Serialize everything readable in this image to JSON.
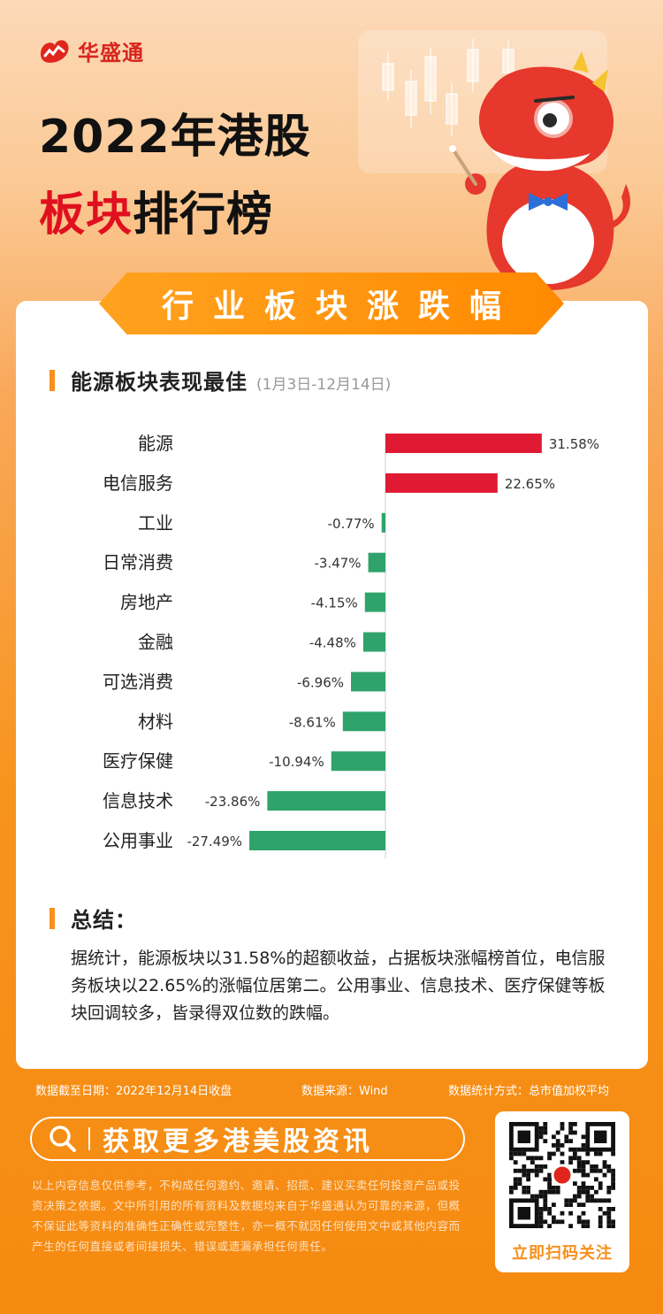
{
  "brand": {
    "name": "华盛通"
  },
  "header": {
    "line1": "2022年港股",
    "line2_red": "板块",
    "line2_rest": "排行榜"
  },
  "ribbon": {
    "label": "行业板块涨跌幅"
  },
  "section1": {
    "title": "能源板块表现最佳",
    "subtitle": "(1月3日-12月14日)"
  },
  "chart_data": {
    "type": "bar",
    "orientation": "horizontal",
    "categories": [
      "能源",
      "电信服务",
      "工业",
      "日常消费",
      "房地产",
      "金融",
      "可选消费",
      "材料",
      "医疗保健",
      "信息技术",
      "公用事业"
    ],
    "values": [
      31.58,
      22.65,
      -0.77,
      -3.47,
      -4.15,
      -4.48,
      -6.96,
      -8.61,
      -10.94,
      -23.86,
      -27.49
    ],
    "value_labels": [
      "31.58%",
      "22.65%",
      "-0.77%",
      "-3.47%",
      "-4.15%",
      "-4.48%",
      "-6.96%",
      "-8.61%",
      "-10.94%",
      "-23.86%",
      "-27.49%"
    ],
    "positive_color": "#e01a33",
    "negative_color": "#2fa36b",
    "axis_color": "#cccccc",
    "grid": false,
    "legend": false
  },
  "section2": {
    "title": "总结："
  },
  "summary": "据统计，能源板块以31.58%的超额收益，占据板块涨幅榜首位，电信服务板块以22.65%的涨幅位居第二。公用事业、信息技术、医疗保健等板块回调较多，皆录得双位数的跌幅。",
  "footer": {
    "date": "数据截至日期：2022年12月14日收盘",
    "source": "数据来源：Wind",
    "method": "数据统计方式：总市值加权平均",
    "cta": "获取更多港美股资讯",
    "disclaimer": "以上内容信息仅供参考，不构成任何邀约、邀请、招揽、建议买卖任何投资产品或投资决策之依据。文中所引用的所有资料及数据均来自于华盛通认为可靠的来源，但概不保证此等资料的准确性正确性或完整性，亦一概不就因任何使用文中或其他内容而产生的任何直接或者间接损失、错误或遗漏承担任何责任。",
    "qr_label": "立即扫码关注"
  },
  "colors": {
    "brand_red": "#d7261e",
    "accent_orange": "#f7901e"
  }
}
